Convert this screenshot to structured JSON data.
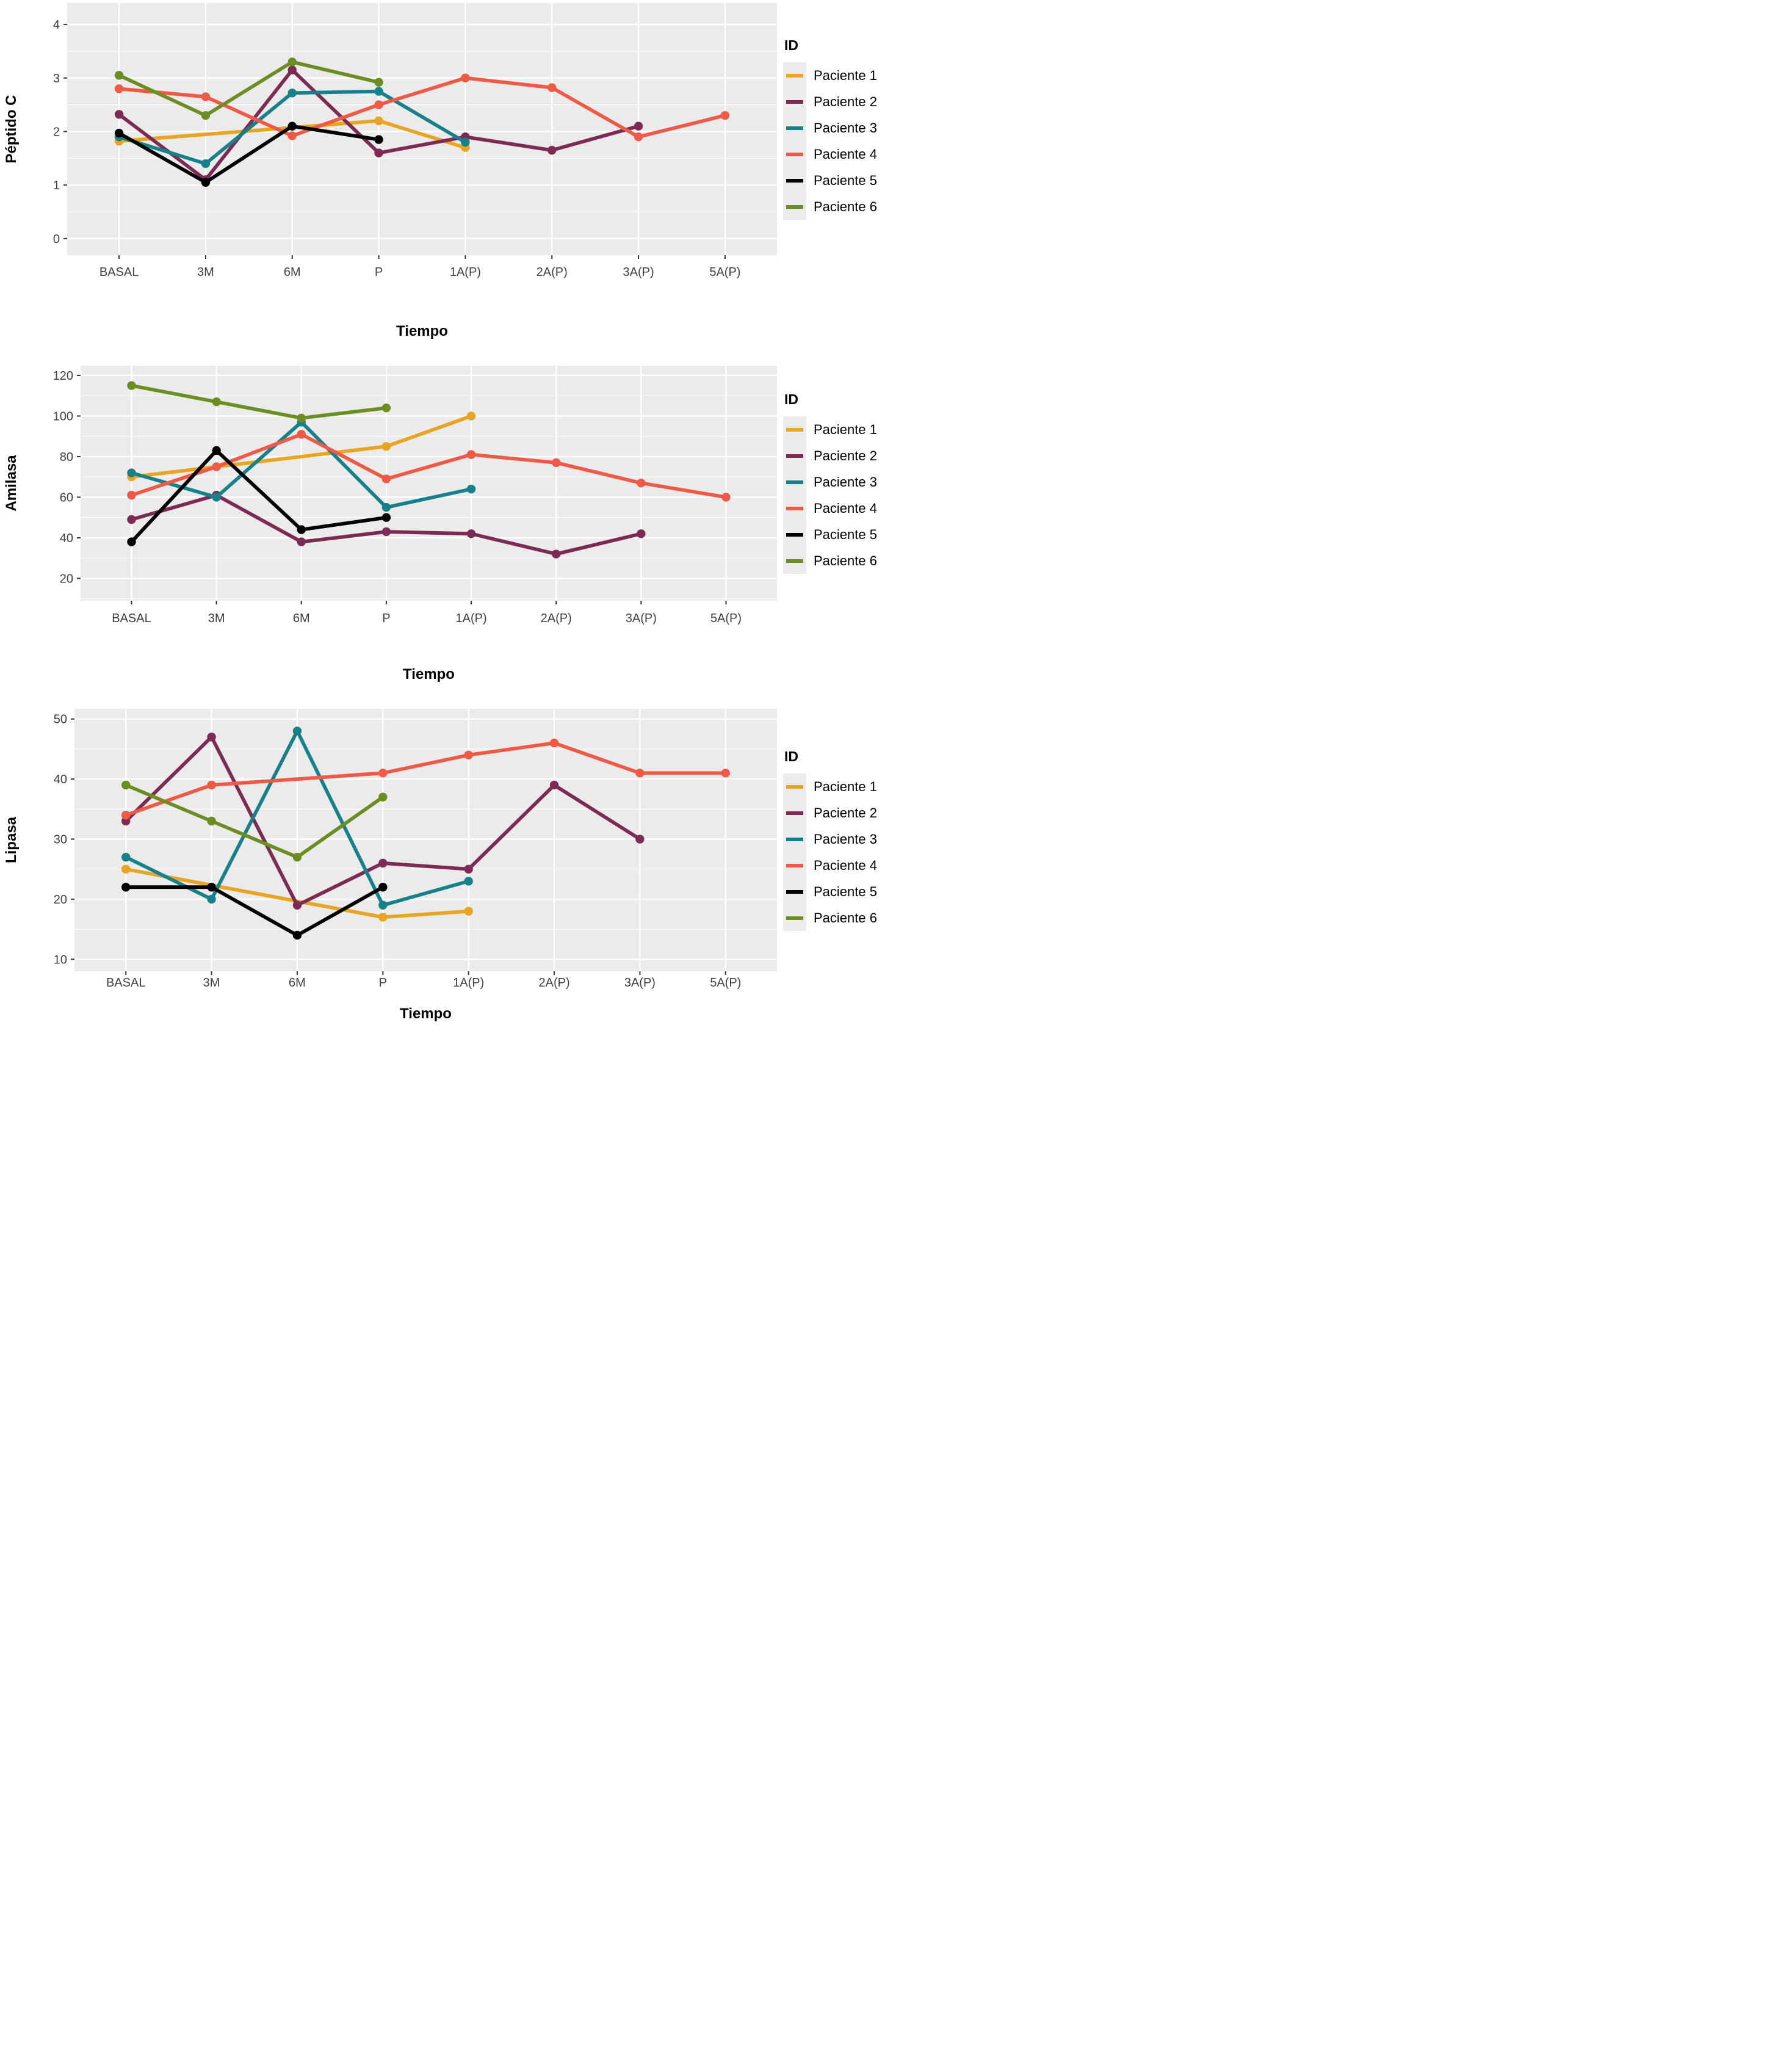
{
  "figure_title": "",
  "style": {
    "panel_bg": "#EBEBEB",
    "grid_color": "#FFFFFF",
    "tick_mark_color": "#333333",
    "tick_label_color": "#404040",
    "axis_title_color": "#000000",
    "page_bg": "#FFFFFF"
  },
  "legend": {
    "title": "ID",
    "position": "right",
    "key_bg": "#EBEBEB",
    "items": [
      {
        "label": "Paciente 1",
        "color": "#E7A521"
      },
      {
        "label": "Paciente 2",
        "color": "#7D2B55"
      },
      {
        "label": "Paciente 3",
        "color": "#17818A"
      },
      {
        "label": "Paciente 4",
        "color": "#EE5A45"
      },
      {
        "label": "Paciente 5",
        "color": "#000000"
      },
      {
        "label": "Paciente 6",
        "color": "#6B8E23"
      }
    ]
  },
  "chart_data": [
    {
      "type": "line",
      "title": "",
      "ylabel": "Péptido C",
      "xlabel": "Tiempo",
      "categories": [
        "BASAL",
        "3M",
        "6M",
        "P",
        "1A(P)",
        "2A(P)",
        "3A(P)",
        "5A(P)"
      ],
      "yticks": [
        0,
        1,
        2,
        3,
        4
      ],
      "minor_step": 0.5,
      "ylim": [
        -0.31,
        4.4
      ],
      "grid": true,
      "legend_position": "right",
      "series": [
        {
          "name": "Paciente 1",
          "color": "#E7A521",
          "values": [
            1.82,
            null,
            null,
            2.2,
            1.7,
            null,
            null,
            null
          ]
        },
        {
          "name": "Paciente 2",
          "color": "#7D2B55",
          "values": [
            2.32,
            1.1,
            3.15,
            1.6,
            1.9,
            1.65,
            2.1,
            null
          ]
        },
        {
          "name": "Paciente 3",
          "color": "#17818A",
          "values": [
            1.9,
            1.4,
            2.72,
            2.75,
            1.8,
            null,
            null,
            null
          ]
        },
        {
          "name": "Paciente 4",
          "color": "#EE5A45",
          "values": [
            2.8,
            2.65,
            1.92,
            2.5,
            3.0,
            2.82,
            1.9,
            2.3
          ]
        },
        {
          "name": "Paciente 5",
          "color": "#000000",
          "values": [
            1.97,
            1.05,
            2.1,
            1.85,
            null,
            null,
            null,
            null
          ]
        },
        {
          "name": "Paciente 6",
          "color": "#6B8E23",
          "values": [
            3.05,
            2.3,
            3.3,
            2.92,
            null,
            null,
            null,
            null
          ]
        }
      ]
    },
    {
      "type": "line",
      "title": "",
      "ylabel": "Amilasa",
      "xlabel": "Tiempo",
      "categories": [
        "BASAL",
        "3M",
        "6M",
        "P",
        "1A(P)",
        "2A(P)",
        "3A(P)",
        "5A(P)"
      ],
      "yticks": [
        20,
        40,
        60,
        80,
        100,
        120
      ],
      "minor_step": 10,
      "ylim": [
        9,
        124.8
      ],
      "grid": true,
      "legend_position": "right",
      "series": [
        {
          "name": "Paciente 1",
          "color": "#E7A521",
          "values": [
            70,
            null,
            null,
            85,
            100,
            null,
            null,
            null
          ]
        },
        {
          "name": "Paciente 2",
          "color": "#7D2B55",
          "values": [
            49,
            61,
            38,
            43,
            42,
            32,
            42,
            null
          ]
        },
        {
          "name": "Paciente 3",
          "color": "#17818A",
          "values": [
            72,
            60,
            97,
            55,
            64,
            null,
            null,
            null
          ]
        },
        {
          "name": "Paciente 4",
          "color": "#EE5A45",
          "values": [
            61,
            75,
            91,
            69,
            81,
            77,
            67,
            60
          ]
        },
        {
          "name": "Paciente 5",
          "color": "#000000",
          "values": [
            38,
            83,
            44,
            50,
            null,
            null,
            null,
            null
          ]
        },
        {
          "name": "Paciente 6",
          "color": "#6B8E23",
          "values": [
            115,
            107,
            99,
            104,
            null,
            null,
            null,
            null
          ]
        }
      ]
    },
    {
      "type": "line",
      "title": "",
      "ylabel": "Lipasa",
      "xlabel": "Tiempo",
      "categories": [
        "BASAL",
        "3M",
        "6M",
        "P",
        "1A(P)",
        "2A(P)",
        "3A(P)",
        "5A(P)"
      ],
      "yticks": [
        10,
        20,
        30,
        40,
        50
      ],
      "minor_step": 5,
      "ylim": [
        8,
        51.7
      ],
      "grid": true,
      "legend_position": "right",
      "series": [
        {
          "name": "Paciente 1",
          "color": "#E7A521",
          "values": [
            25,
            null,
            null,
            17,
            18,
            null,
            null,
            null
          ]
        },
        {
          "name": "Paciente 2",
          "color": "#7D2B55",
          "values": [
            33,
            47,
            19,
            26,
            25,
            39,
            30,
            null
          ]
        },
        {
          "name": "Paciente 3",
          "color": "#17818A",
          "values": [
            27,
            20,
            48,
            19,
            23,
            null,
            null,
            null
          ]
        },
        {
          "name": "Paciente 4",
          "color": "#EE5A45",
          "values": [
            34,
            39,
            null,
            41,
            44,
            46,
            41,
            41
          ]
        },
        {
          "name": "Paciente 5",
          "color": "#000000",
          "values": [
            22,
            22,
            14,
            22,
            null,
            null,
            null,
            null
          ]
        },
        {
          "name": "Paciente 6",
          "color": "#6B8E23",
          "values": [
            39,
            33,
            27,
            37,
            null,
            null,
            null,
            null
          ]
        }
      ]
    }
  ]
}
